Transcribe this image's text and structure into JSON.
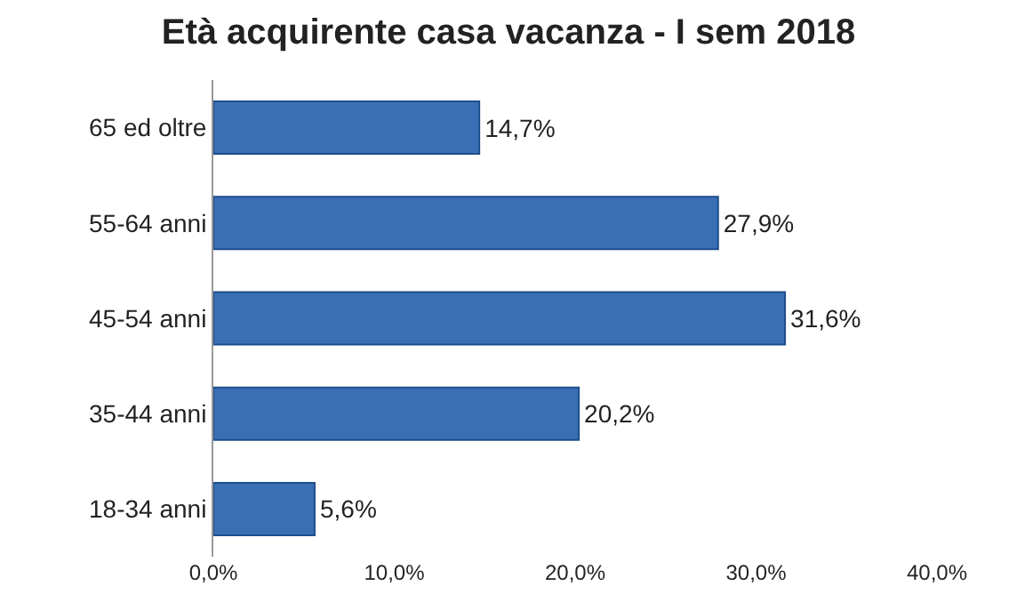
{
  "chart_data": {
    "type": "bar",
    "orientation": "horizontal",
    "title": "Età acquirente casa vacanza - I sem 2018",
    "categories": [
      "65 ed oltre",
      "55-64 anni",
      "45-54 anni",
      "35-44 anni",
      "18-34 anni"
    ],
    "values": [
      14.7,
      27.9,
      31.6,
      20.2,
      5.6
    ],
    "value_labels": [
      "14,7%",
      "27,9%",
      "31,6%",
      "20,2%",
      "5,6%"
    ],
    "color": "#3a6fb5",
    "xlim": [
      0,
      40
    ],
    "xticks": [
      {
        "value": 0,
        "label": "0,0%"
      },
      {
        "value": 10,
        "label": "10,0%"
      },
      {
        "value": 20,
        "label": "20,0%"
      },
      {
        "value": 30,
        "label": "30,0%"
      },
      {
        "value": 40,
        "label": "40,0%"
      }
    ],
    "grid": false
  }
}
